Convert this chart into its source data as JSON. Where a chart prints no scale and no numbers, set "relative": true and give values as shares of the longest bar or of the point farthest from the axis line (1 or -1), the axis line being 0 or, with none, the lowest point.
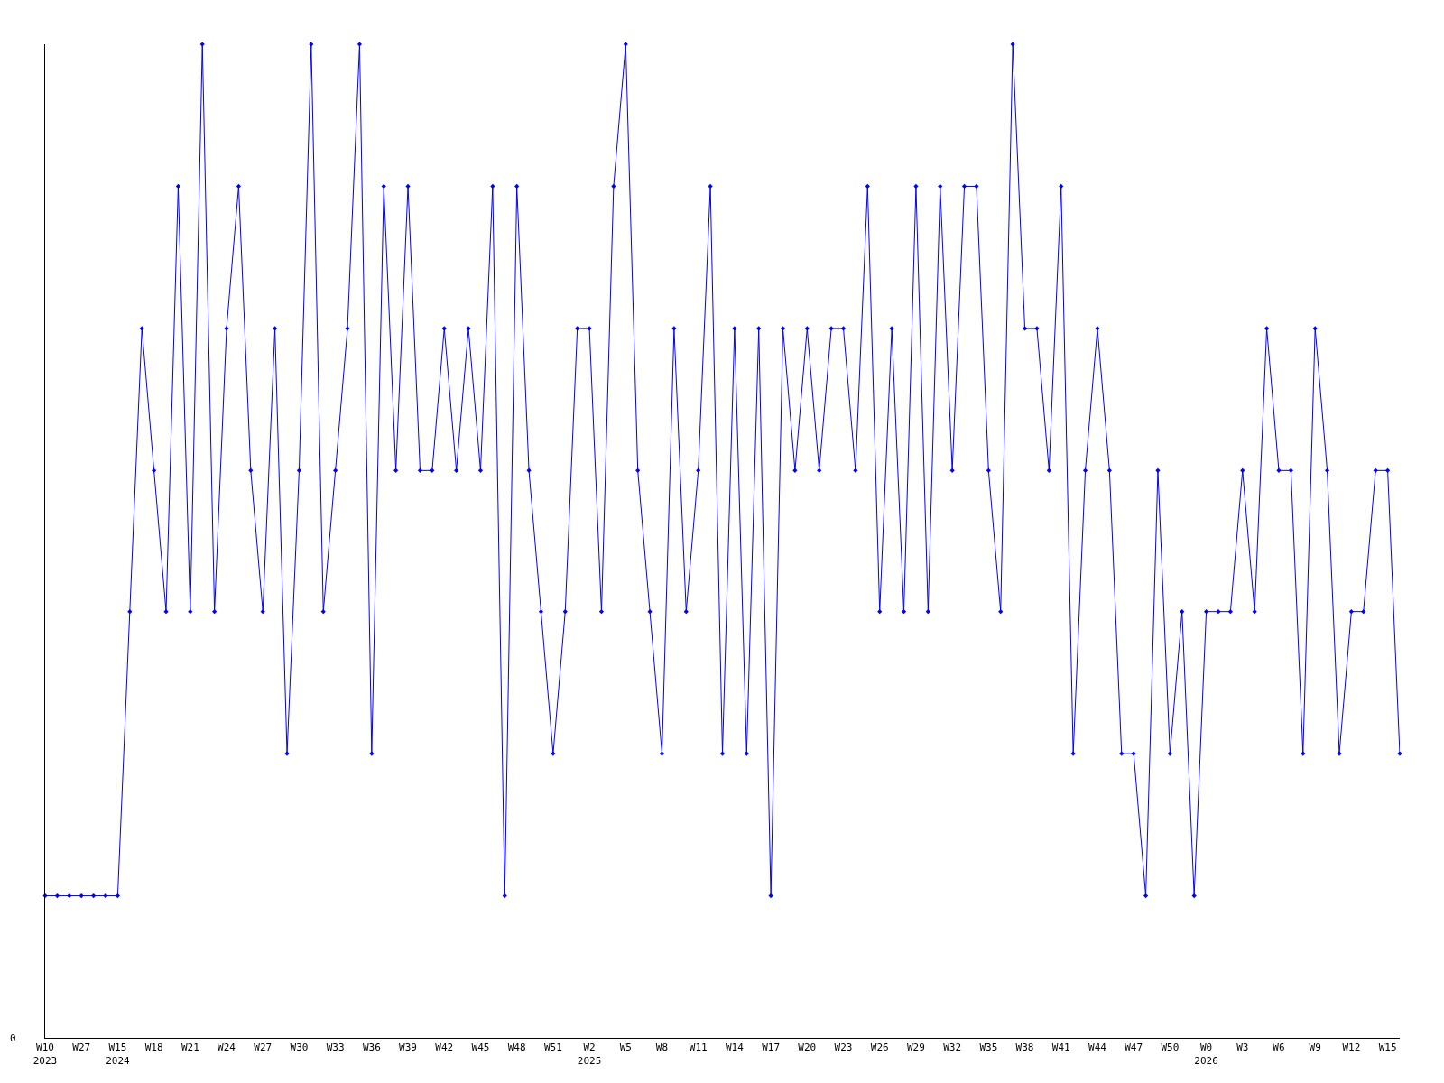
{
  "chart_data": {
    "type": "line",
    "relative": true,
    "marker": "diamond",
    "categories": [
      "W10\n2023",
      null,
      null,
      "W27",
      null,
      null,
      "W15\n2024",
      null,
      null,
      "W18",
      null,
      null,
      "W21",
      null,
      null,
      "W24",
      null,
      null,
      "W27",
      null,
      null,
      "W30",
      null,
      null,
      "W33",
      null,
      null,
      "W36",
      null,
      null,
      "W39",
      null,
      null,
      "W42",
      null,
      null,
      "W45",
      null,
      null,
      "W48",
      null,
      null,
      "W51",
      null,
      null,
      "W2\n2025",
      null,
      null,
      "W5",
      null,
      null,
      "W8",
      null,
      null,
      "W11",
      null,
      null,
      "W14",
      null,
      null,
      "W17",
      null,
      null,
      "W20",
      null,
      null,
      "W23",
      null,
      null,
      "W26",
      null,
      null,
      "W29",
      null,
      null,
      "W32",
      null,
      null,
      "W35",
      null,
      null,
      "W38",
      null,
      null,
      "W41",
      null,
      null,
      "W44",
      null,
      null,
      "W47",
      null,
      null,
      "W50",
      null,
      null,
      "W0\n2026",
      null,
      null,
      "W3",
      null,
      null,
      "W6",
      null,
      null,
      "W9",
      null,
      null,
      "W12",
      null,
      null,
      "W15",
      null
    ],
    "series": [
      {
        "color": "#0000ff",
        "values": [
          0.143,
          0.143,
          0.143,
          0.143,
          0.143,
          0.143,
          0.143,
          0.429,
          0.714,
          0.571,
          0.429,
          0.857,
          0.429,
          1,
          0.429,
          0.714,
          0.857,
          0.571,
          0.429,
          0.714,
          0.286,
          0.571,
          1,
          0.429,
          0.571,
          0.714,
          1,
          0.286,
          0.857,
          0.571,
          0.857,
          0.571,
          0.571,
          0.714,
          0.571,
          0.714,
          0.571,
          0.857,
          0.143,
          0.857,
          0.571,
          0.429,
          0.286,
          0.429,
          0.714,
          0.714,
          0.429,
          0.857,
          1,
          0.571,
          0.429,
          0.286,
          0.714,
          0.429,
          0.571,
          0.857,
          0.286,
          0.714,
          0.286,
          0.714,
          0.143,
          0.714,
          0.571,
          0.714,
          0.571,
          0.714,
          0.714,
          0.571,
          0.857,
          0.429,
          0.714,
          0.429,
          0.857,
          0.429,
          0.857,
          0.571,
          0.857,
          0.857,
          0.571,
          0.429,
          1,
          0.714,
          0.714,
          0.571,
          0.857,
          0.286,
          0.571,
          0.714,
          0.571,
          0.286,
          0.286,
          0.143,
          0.571,
          0.286,
          0.429,
          0.143,
          0.429,
          0.429,
          0.429,
          0.571,
          0.429,
          0.714,
          0.571,
          0.571,
          0.286,
          0.714,
          0.571,
          0.286,
          0.429,
          0.429,
          0.571,
          0.571,
          0.286
        ]
      }
    ],
    "annotations": [
      "0"
    ]
  }
}
